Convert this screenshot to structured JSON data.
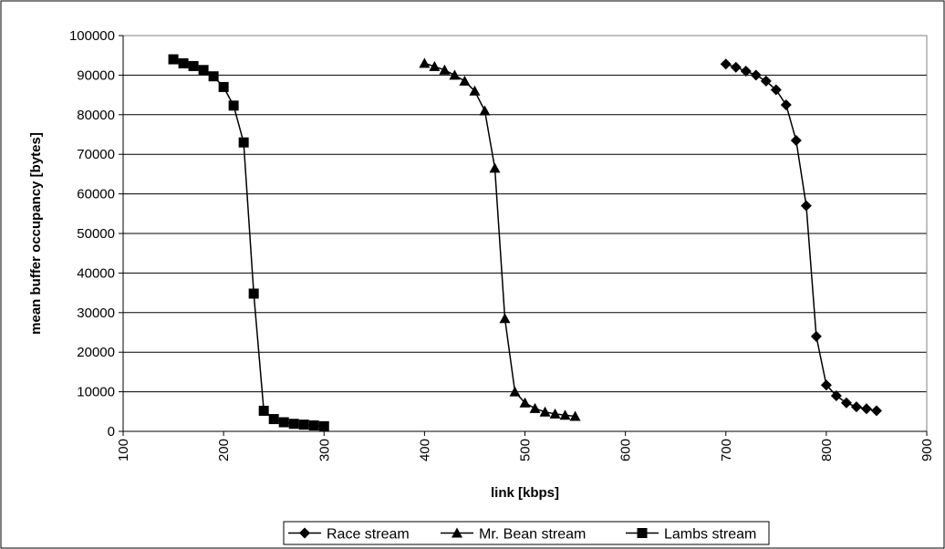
{
  "chart_data": {
    "type": "line",
    "xlabel": "link [kbps]",
    "ylabel": "mean buffer occupancy [bytes]",
    "xlim": [
      100,
      900
    ],
    "ylim": [
      0,
      100000
    ],
    "x_ticks": [
      "100",
      "200",
      "300",
      "400",
      "500",
      "600",
      "700",
      "800",
      "900"
    ],
    "y_ticks": [
      "0",
      "10000",
      "20000",
      "30000",
      "40000",
      "50000",
      "60000",
      "70000",
      "80000",
      "90000",
      "100000"
    ],
    "grid": "horizontal",
    "legend_position": "bottom",
    "series": [
      {
        "name": "Race stream",
        "marker": "diamond",
        "color": "#000000",
        "x": [
          700,
          710,
          720,
          730,
          740,
          750,
          760,
          770,
          780,
          790,
          800,
          810,
          820,
          830,
          840,
          850
        ],
        "y": [
          92800,
          92000,
          91000,
          90000,
          88500,
          86300,
          82500,
          73500,
          57000,
          24000,
          11700,
          9000,
          7200,
          6200,
          5700,
          5200
        ]
      },
      {
        "name": "Mr. Bean stream",
        "marker": "triangle",
        "color": "#000000",
        "x": [
          400,
          410,
          420,
          430,
          440,
          450,
          460,
          470,
          480,
          490,
          500,
          510,
          520,
          530,
          540,
          550
        ],
        "y": [
          93000,
          92200,
          91300,
          90000,
          88500,
          86000,
          81000,
          66500,
          28500,
          10000,
          7200,
          5800,
          4900,
          4400,
          4100,
          3800
        ]
      },
      {
        "name": "Lambs stream",
        "marker": "square",
        "color": "#000000",
        "x": [
          150,
          160,
          170,
          180,
          190,
          200,
          210,
          220,
          230,
          240,
          250,
          260,
          270,
          280,
          290,
          300
        ],
        "y": [
          94000,
          93000,
          92300,
          91300,
          89700,
          87000,
          82300,
          73000,
          34800,
          5200,
          3100,
          2300,
          1900,
          1700,
          1500,
          1300
        ]
      }
    ]
  }
}
